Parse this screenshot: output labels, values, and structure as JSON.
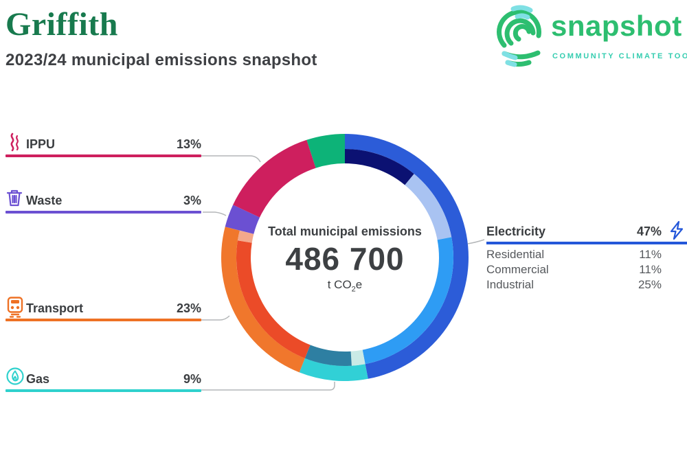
{
  "header": {
    "title": "Griffith",
    "subtitle": "2023/24 municipal emissions snapshot"
  },
  "logo": {
    "name": "snapshot",
    "tagline": "COMMUNITY CLIMATE TOOL",
    "brand_green": "#2dbe70",
    "brand_teal": "#35cdb0",
    "mark_teal": "#7fe0e4"
  },
  "center": {
    "label": "Total municipal emissions",
    "value": "486 700",
    "unit_prefix": "t CO",
    "unit_sub": "2",
    "unit_suffix": "e"
  },
  "legend_left": [
    {
      "label": "IPPU",
      "value": "13%",
      "color": "#ce1f5e",
      "icon": "smoke-icon"
    },
    {
      "label": "Waste",
      "value": "3%",
      "color": "#6b50d2",
      "icon": "trash-icon"
    },
    {
      "label": "Transport",
      "value": "23%",
      "color": "#ee7124",
      "icon": "train-icon"
    },
    {
      "label": "Gas",
      "value": "9%",
      "color": "#2fd1cd",
      "icon": "flame-icon"
    }
  ],
  "legend_right": {
    "label": "Electricity",
    "value": "47%",
    "color": "#2457d9",
    "icon": "bolt-icon",
    "sub_rows": [
      {
        "label": "Residential",
        "value": "11%"
      },
      {
        "label": "Commercial",
        "value": "11%"
      },
      {
        "label": "Industrial",
        "value": "25%"
      }
    ]
  },
  "chart_data": {
    "type": "donut",
    "title": "Total municipal emissions",
    "total_label": "486 700",
    "total_value": 486700,
    "unit": "t CO2e",
    "legend_position": "left-right callouts",
    "segments": [
      {
        "label": "Electricity",
        "value": 47,
        "color": "#2c5cd8",
        "has_breakdown": true
      },
      {
        "label": "Gas",
        "value": 9,
        "color": "#31d0d6",
        "has_breakdown": true
      },
      {
        "label": "Transport",
        "value": 23,
        "color": "#f0772c",
        "has_breakdown": true
      },
      {
        "label": "Waste",
        "value": 3,
        "color": "#6b50d2",
        "has_breakdown": false
      },
      {
        "label": "IPPU",
        "value": 13,
        "color": "#ce1f5e",
        "has_breakdown": false
      },
      {
        "label": "",
        "value": 5,
        "color": "#0db378",
        "has_breakdown": false
      }
    ],
    "inner_segments": [
      {
        "label": "Residential",
        "value": 11,
        "color": "#0b1172"
      },
      {
        "label": "Commercial",
        "value": 11,
        "color": "#a9c3f2"
      },
      {
        "label": "Industrial",
        "value": 25,
        "color": "#2e9cf4"
      },
      {
        "label": "",
        "value": 2,
        "color": "#c9eae6"
      },
      {
        "label": "",
        "value": 7,
        "color": "#2e7fa2"
      },
      {
        "label": "",
        "value": 21.5,
        "color": "#eb4b28"
      },
      {
        "label": "",
        "value": 1.5,
        "color": "#f4a88b"
      }
    ],
    "geometry": {
      "outer_radius": 180,
      "band_split_radius": 158,
      "inner_radius": 137
    }
  },
  "leader_color": "#b3b6b8"
}
